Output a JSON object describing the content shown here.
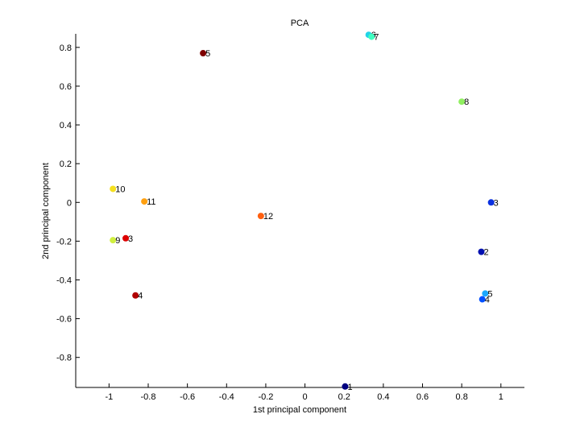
{
  "chart_data": {
    "type": "scatter",
    "title": "PCA",
    "xlabel": "1st principal component",
    "ylabel": "2nd principal component",
    "xlim": [
      -1.17,
      1.12
    ],
    "ylim": [
      -0.955,
      0.87
    ],
    "grid": false,
    "xticks": [
      "-1",
      "-0.8",
      "-0.6",
      "-0.4",
      "-0.2",
      "0",
      "0.2",
      "0.4",
      "0.6",
      "0.8",
      "1"
    ],
    "xtick_values": [
      -1,
      -0.8,
      -0.6,
      -0.4,
      -0.2,
      0,
      0.2,
      0.4,
      0.6,
      0.8,
      1
    ],
    "yticks": [
      "-0.8",
      "-0.6",
      "-0.4",
      "-0.2",
      "0",
      "0.2",
      "0.4",
      "0.6",
      "0.8"
    ],
    "ytick_values": [
      -0.8,
      -0.6,
      -0.4,
      -0.2,
      0,
      0.2,
      0.4,
      0.6,
      0.8
    ],
    "points": [
      {
        "x": -0.52,
        "y": 0.77,
        "label": "5",
        "color": "#7f0000"
      },
      {
        "x": 0.325,
        "y": 0.865,
        "label": "6",
        "color": "#22d3e8"
      },
      {
        "x": 0.34,
        "y": 0.855,
        "label": "7",
        "color": "#40ffc0"
      },
      {
        "x": 0.8,
        "y": 0.52,
        "label": "8",
        "color": "#90ef60"
      },
      {
        "x": -0.98,
        "y": 0.07,
        "label": "10",
        "color": "#f5e020"
      },
      {
        "x": -0.82,
        "y": 0.005,
        "label": "11",
        "color": "#ffa010"
      },
      {
        "x": -0.225,
        "y": -0.07,
        "label": "12",
        "color": "#ff6010"
      },
      {
        "x": -0.915,
        "y": -0.185,
        "label": "3",
        "color": "#dd0000"
      },
      {
        "x": -0.98,
        "y": -0.195,
        "label": "9",
        "color": "#d0ef40"
      },
      {
        "x": -0.865,
        "y": -0.48,
        "label": "4",
        "color": "#b00000"
      },
      {
        "x": 0.95,
        "y": 0.0,
        "label": "3",
        "color": "#0a30e0"
      },
      {
        "x": 0.9,
        "y": -0.255,
        "label": "2",
        "color": "#0010b0"
      },
      {
        "x": 0.92,
        "y": -0.47,
        "label": "5",
        "color": "#1aa8ff"
      },
      {
        "x": 0.905,
        "y": -0.5,
        "label": "4",
        "color": "#0050ff"
      },
      {
        "x": 0.205,
        "y": -0.95,
        "label": "1",
        "color": "#000080"
      }
    ]
  }
}
